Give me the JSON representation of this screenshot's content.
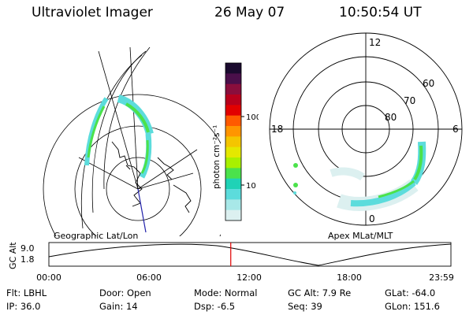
{
  "header": {
    "instrument": "Ultraviolet Imager",
    "date": "26 May 07",
    "time": "10:50:54 UT"
  },
  "colorbar": {
    "unit_label": "photon cm⁻²s⁻¹",
    "ticks": [
      "100",
      "10"
    ],
    "colors": [
      "#1a0a2e",
      "#4a0f4a",
      "#8a0e3c",
      "#b8001c",
      "#e20000",
      "#ff5a00",
      "#ff9500",
      "#f4c500",
      "#e4e800",
      "#a8f000",
      "#4be24b",
      "#1fd2b6",
      "#5cdcdc",
      "#a8e8e8",
      "#dcf0f0"
    ]
  },
  "left_panel": {
    "label": "Geographic Lat/Lon"
  },
  "right_panel": {
    "label": "Apex MLat/MLT",
    "lat_labels": [
      "60",
      "70",
      "80"
    ],
    "mlt_labels": {
      "top": "12",
      "left": "18",
      "right": "6",
      "bottom": "0"
    }
  },
  "timeline": {
    "ylabel": "GC Alt",
    "y_ticks": [
      "9.0",
      "1.8"
    ],
    "x_ticks": [
      "00:00",
      "06:00",
      "12:00",
      "18:00",
      "23:59"
    ],
    "current_time_fraction": 0.4524
  },
  "footer": {
    "flt": "Flt: LBHL",
    "door": "Door: Open",
    "mode": "Mode: Normal",
    "gc_alt": "GC Alt: 7.9 Re",
    "glat": "GLat: -64.0",
    "ip": "IP: 36.0",
    "gain": "Gain: 14",
    "dsp": "Dsp:   -6.5",
    "seq": "Seq: 39",
    "glon": "GLon: 151.6"
  }
}
